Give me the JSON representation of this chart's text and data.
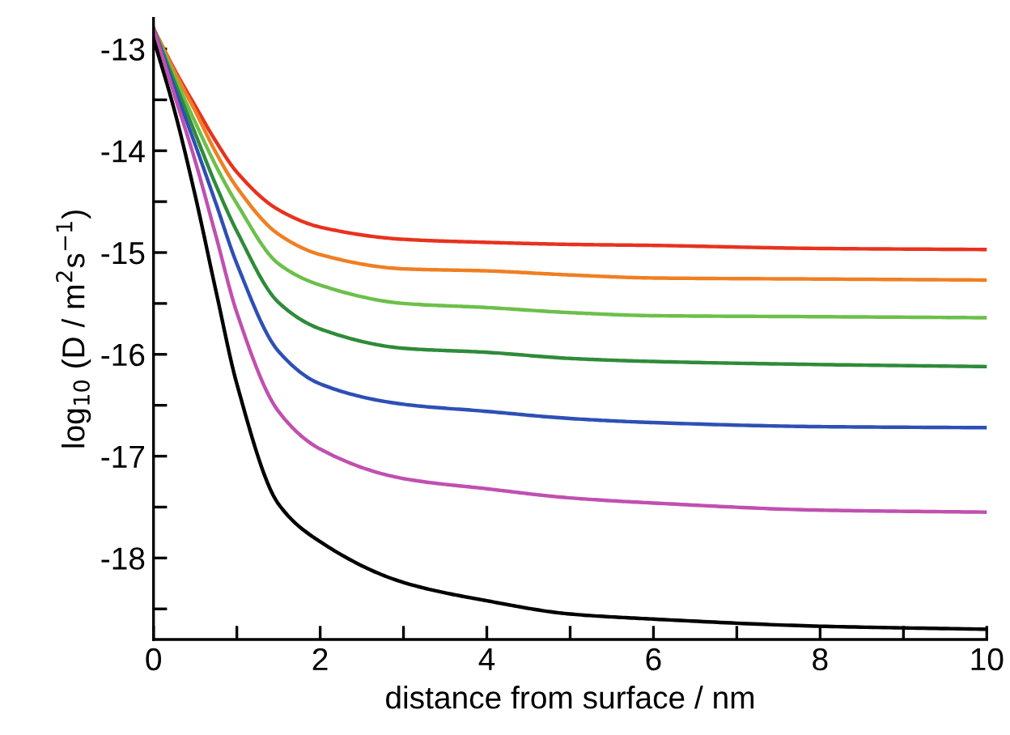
{
  "chart_data": {
    "type": "line",
    "xlabel": "distance from surface / nm",
    "ylabel": "log$_{10}$ (D / m$^{2}$s$^{−1}$)",
    "x": [
      0,
      0.25,
      0.5,
      0.75,
      1,
      1.5,
      2,
      3,
      4,
      5,
      6,
      8,
      10
    ],
    "series": [
      {
        "color": "#e8321e",
        "values": [
          -12.8,
          -13.2,
          -13.56,
          -13.91,
          -14.21,
          -14.58,
          -14.75,
          -14.87,
          -14.9,
          -14.92,
          -14.93,
          -14.96,
          -14.97
        ]
      },
      {
        "color": "#f07f22",
        "values": [
          -12.8,
          -13.22,
          -13.61,
          -14.02,
          -14.36,
          -14.82,
          -15.02,
          -15.16,
          -15.18,
          -15.22,
          -15.25,
          -15.26,
          -15.27
        ]
      },
      {
        "color": "#6cc04a",
        "values": [
          -12.8,
          -13.27,
          -13.72,
          -14.15,
          -14.52,
          -15.11,
          -15.32,
          -15.5,
          -15.54,
          -15.59,
          -15.62,
          -15.63,
          -15.64
        ]
      },
      {
        "color": "#2e8b3a",
        "values": [
          -12.8,
          -13.32,
          -13.83,
          -14.34,
          -14.79,
          -15.49,
          -15.75,
          -15.94,
          -15.98,
          -16.04,
          -16.07,
          -16.1,
          -16.12
        ]
      },
      {
        "color": "#2e4fb5",
        "values": [
          -12.8,
          -13.38,
          -13.94,
          -14.52,
          -15.11,
          -15.97,
          -16.29,
          -16.49,
          -16.56,
          -16.63,
          -16.67,
          -16.71,
          -16.72
        ]
      },
      {
        "color": "#c050b0",
        "values": [
          -12.8,
          -13.45,
          -14.1,
          -14.84,
          -15.59,
          -16.56,
          -16.93,
          -17.22,
          -17.32,
          -17.41,
          -17.46,
          -17.53,
          -17.55
        ]
      },
      {
        "color": "#000000",
        "values": [
          -12.9,
          -13.6,
          -14.44,
          -15.38,
          -16.29,
          -17.47,
          -17.84,
          -18.24,
          -18.42,
          -18.55,
          -18.6,
          -18.67,
          -18.7
        ]
      }
    ],
    "xlim": [
      0,
      10
    ],
    "ylim": [
      -18.8,
      -12.7
    ],
    "xticks": [
      0,
      {
        "value": 1,
        "label": null
      },
      2,
      {
        "value": 3,
        "label": null
      },
      4,
      {
        "value": 5,
        "label": null
      },
      6,
      {
        "value": 7,
        "label": null
      },
      8,
      {
        "value": 9,
        "label": null
      },
      10
    ],
    "yticks": [
      {
        "value": -18.5,
        "label": null
      },
      -18,
      {
        "value": -17.5,
        "label": null
      },
      -17,
      {
        "value": -16.5,
        "label": null
      },
      -16,
      {
        "value": -15.5,
        "label": null
      },
      -15,
      {
        "value": -14.5,
        "label": null
      },
      -14,
      {
        "value": -13.5,
        "label": null
      },
      -13
    ],
    "grid": false,
    "legend": false,
    "marker": "none",
    "line_style": "solid"
  }
}
